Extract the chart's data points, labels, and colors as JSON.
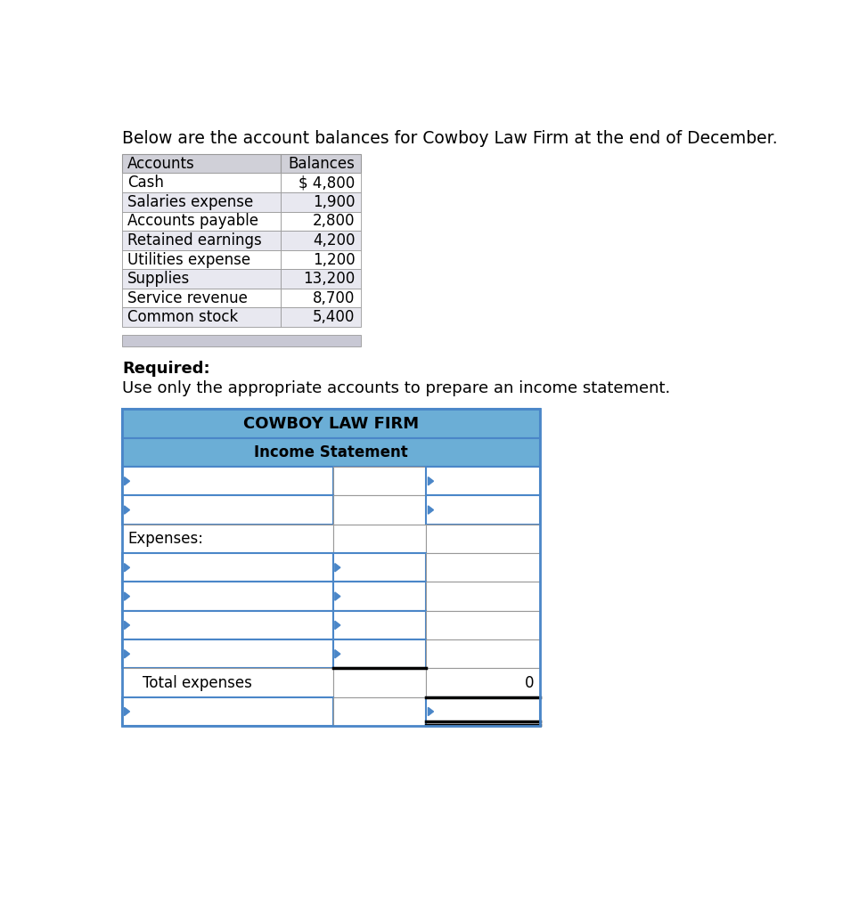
{
  "title_text": "Below are the account balances for Cowboy Law Firm at the end of December.",
  "top_table_header": [
    "Accounts",
    "Balances"
  ],
  "top_table_rows": [
    [
      "Cash",
      "$ 4,800"
    ],
    [
      "Salaries expense",
      "1,900"
    ],
    [
      "Accounts payable",
      "2,800"
    ],
    [
      "Retained earnings",
      "4,200"
    ],
    [
      "Utilities expense",
      "1,200"
    ],
    [
      "Supplies",
      "13,200"
    ],
    [
      "Service revenue",
      "8,700"
    ],
    [
      "Common stock",
      "5,400"
    ]
  ],
  "required_text": "Required:",
  "instruction_text": "Use only the appropriate accounts to prepare an income statement.",
  "income_stmt_title": "COWBOY LAW FIRM",
  "income_stmt_subtitle": "Income Statement",
  "total_expenses_label": "Total expenses",
  "total_expenses_value": "0",
  "header_bg": "#6baed6",
  "blue_border": "#4a86c8",
  "gray_border": "#999999",
  "top_header_bg": "#d0d0d8",
  "top_alt_bg": "#e8e8f0",
  "top_white_bg": "#ffffff",
  "bot_strip_bg": "#c8c8d4",
  "arrow_color": "#4a86c8",
  "bg_color": "#ffffff",
  "font_color": "#000000"
}
